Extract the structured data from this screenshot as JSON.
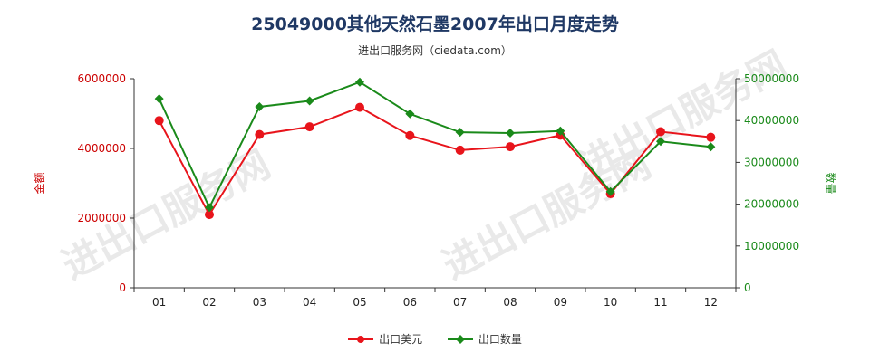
{
  "chart": {
    "title": "25049000其他天然石墨2007年出口月度走势",
    "subtitle": "进出口服务网（ciedata.com）",
    "watermark": "进出口服务网",
    "left_axis_label": "金额",
    "right_axis_label": "数量"
  },
  "colors": {
    "amount": "#e8141b",
    "quantity": "#1a8a1a",
    "axis": "#333333",
    "left_axis": "#cc0000",
    "right_axis": "#1a8a1a"
  },
  "chart_data": {
    "type": "line",
    "title": "25049000其他天然石墨2007年出口月度走势",
    "categories": [
      "01",
      "02",
      "03",
      "04",
      "05",
      "06",
      "07",
      "08",
      "09",
      "10",
      "11",
      "12"
    ],
    "series": [
      {
        "name": "出口美元",
        "axis": "left",
        "values": [
          4800000,
          2100000,
          4400000,
          4620000,
          5180000,
          4370000,
          3950000,
          4050000,
          4380000,
          2700000,
          4480000,
          4320000
        ]
      },
      {
        "name": "出口数量",
        "axis": "right",
        "values": [
          45200000,
          19200000,
          43300000,
          44700000,
          49200000,
          41600000,
          37200000,
          37000000,
          37500000,
          23000000,
          35000000,
          33700000
        ]
      }
    ],
    "y_left": {
      "label": "金额",
      "ylim": [
        0,
        6000000
      ],
      "ticks": [
        "0",
        "2000000",
        "4000000",
        "6000000"
      ]
    },
    "y_right": {
      "label": "数量",
      "ylim": [
        0,
        50000000
      ],
      "ticks": [
        "0",
        "10000000",
        "20000000",
        "30000000",
        "40000000",
        "50000000"
      ]
    },
    "grid": false,
    "legend_position": "bottom"
  }
}
